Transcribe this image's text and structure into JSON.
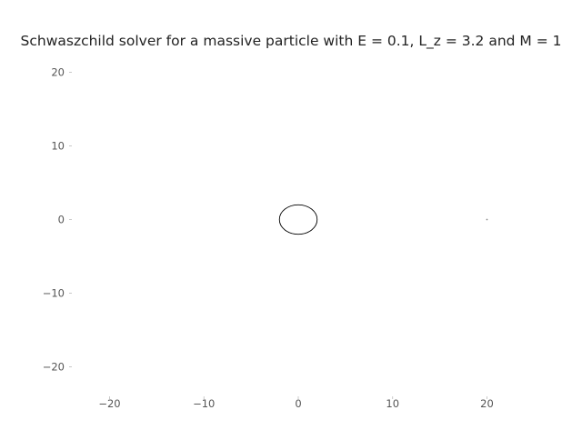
{
  "chart_data": {
    "type": "line",
    "title": "Schwaszchild solver for a massive particle with E = 0.1, L_z = 3.2 and M = 1",
    "xlabel": "",
    "ylabel": "",
    "xlim": [
      -24,
      24
    ],
    "ylim": [
      -24,
      24
    ],
    "xticks": [
      -20,
      -10,
      0,
      10,
      20
    ],
    "yticks": [
      20,
      10,
      0,
      -10,
      -20
    ],
    "grid": false,
    "series": [
      {
        "kind": "closed-orbit",
        "center": [
          0,
          0
        ],
        "radius_x": 2,
        "radius_y": 2,
        "color": "#000000"
      },
      {
        "kind": "point",
        "x": [
          20
        ],
        "y": [
          0
        ],
        "color": "#888888"
      }
    ]
  }
}
